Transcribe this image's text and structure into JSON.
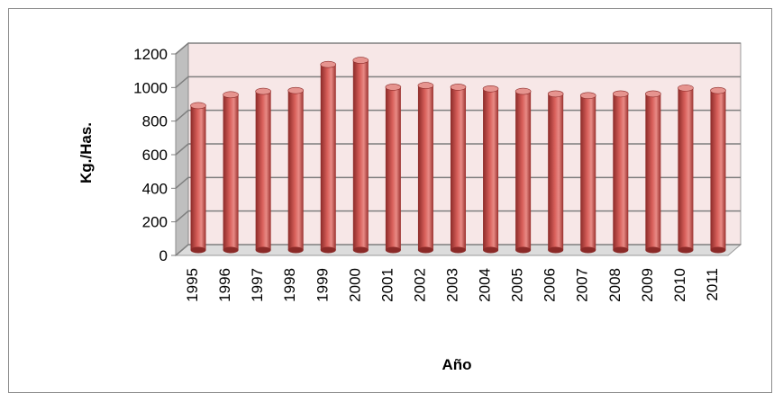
{
  "chart_data": {
    "type": "bar",
    "categories": [
      "1995",
      "1996",
      "1997",
      "1998",
      "1999",
      "2000",
      "2001",
      "2002",
      "2003",
      "2004",
      "2005",
      "2006",
      "2007",
      "2008",
      "2009",
      "2010",
      "2011"
    ],
    "values": [
      860,
      925,
      945,
      950,
      1105,
      1130,
      970,
      980,
      970,
      960,
      945,
      930,
      920,
      930,
      930,
      965,
      950
    ],
    "xlabel": "Año",
    "ylabel": "Kg./Has.",
    "ylim": [
      0,
      1200
    ],
    "yticks": [
      "0",
      "200",
      "400",
      "600",
      "800",
      "1000",
      "1200"
    ],
    "grid": true,
    "legend": "none",
    "colors": {
      "bar": "#c0504d",
      "bar_dark": "#8b2a28",
      "bar_light": "#e6948f",
      "wall": "#f7e7e7",
      "floor": "#dcdcdc"
    }
  }
}
